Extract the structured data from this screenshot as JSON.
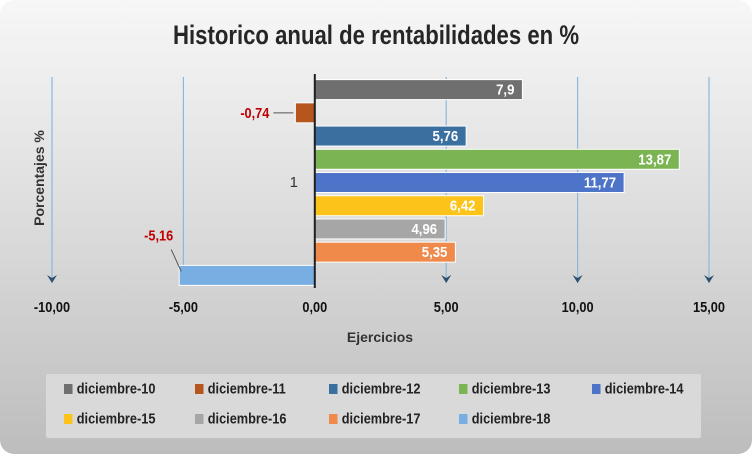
{
  "chart_data": {
    "type": "bar",
    "orientation": "horizontal",
    "title": "Historico anual de rentabilidades  en %",
    "xlabel": "Ejercicios",
    "ylabel": "Porcentajes %",
    "category_label": "1",
    "xlim": [
      -10,
      15
    ],
    "xticks": [
      "-10,00",
      "-5,00",
      "0,00",
      "5,00",
      "10,00",
      "15,00"
    ],
    "xtick_values": [
      -10,
      -5,
      0,
      5,
      10,
      15
    ],
    "legend_position": "bottom",
    "series": [
      {
        "name": "diciembre-10",
        "value": 7.9,
        "label": "7,9",
        "color": "#6f6f6f"
      },
      {
        "name": "diciembre-11",
        "value": -0.74,
        "label": "-0,74",
        "color": "#b5561f"
      },
      {
        "name": "diciembre-12",
        "value": 5.76,
        "label": "5,76",
        "color": "#3a6fa0"
      },
      {
        "name": "diciembre-13",
        "value": 13.87,
        "label": "13,87",
        "color": "#7bb553"
      },
      {
        "name": "diciembre-14",
        "value": 11.77,
        "label": "11,77",
        "color": "#4d74c8"
      },
      {
        "name": "diciembre-15",
        "value": 6.42,
        "label": "6,42",
        "color": "#fcc31a"
      },
      {
        "name": "diciembre-16",
        "value": 4.96,
        "label": "4,96",
        "color": "#a6a6a6"
      },
      {
        "name": "diciembre-17",
        "value": 5.35,
        "label": "5,35",
        "color": "#f08a4b"
      },
      {
        "name": "diciembre-18",
        "value": -5.16,
        "label": "-5,16",
        "color": "#79aee3"
      }
    ],
    "label_color_negative": "#c00000",
    "label_color_positive": "#ffffff",
    "axis_color": "#1f1f1f",
    "gridline_color": "#8fb7dc"
  }
}
